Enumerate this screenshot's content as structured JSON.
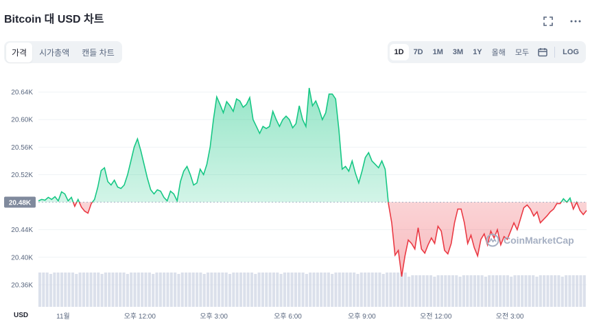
{
  "title": "Bitcoin 대 USD 차트",
  "top_icons": [
    "fullscreen-icon",
    "more-icon"
  ],
  "left_tabs": [
    {
      "label": "가격",
      "active": true
    },
    {
      "label": "시가총액",
      "active": false
    },
    {
      "label": "캔들 차트",
      "active": false
    }
  ],
  "range_tabs": [
    {
      "label": "1D",
      "active": true,
      "kr": false
    },
    {
      "label": "7D",
      "active": false,
      "kr": false
    },
    {
      "label": "1M",
      "active": false,
      "kr": false
    },
    {
      "label": "3M",
      "active": false,
      "kr": false
    },
    {
      "label": "1Y",
      "active": false,
      "kr": false
    },
    {
      "label": "올해",
      "active": false,
      "kr": true
    },
    {
      "label": "모두",
      "active": false,
      "kr": true
    }
  ],
  "log_label": "LOG",
  "currency_label": "USD",
  "watermark": "CoinMarketCap",
  "colors": {
    "up": "#16c784",
    "down": "#ea3943",
    "baseline_label_bg": "#808a9d",
    "volume": "#cfd6e4"
  },
  "chart_data": {
    "type": "line",
    "baseline": 20480,
    "baseline_label": "20.48K",
    "ylim": [
      20330,
      20670
    ],
    "yticks": [
      {
        "value": 20640,
        "label": "20.64K"
      },
      {
        "value": 20600,
        "label": "20.60K"
      },
      {
        "value": 20560,
        "label": "20.56K"
      },
      {
        "value": 20520,
        "label": "20.52K"
      },
      {
        "value": 20440,
        "label": "20.44K"
      },
      {
        "value": 20400,
        "label": "20.40K"
      },
      {
        "value": 20360,
        "label": "20.36K"
      }
    ],
    "xticks": [
      {
        "t": 0.045,
        "label": "11월"
      },
      {
        "t": 0.185,
        "label": "오후 12:00"
      },
      {
        "t": 0.32,
        "label": "오후 3:00"
      },
      {
        "t": 0.455,
        "label": "오후 6:00"
      },
      {
        "t": 0.59,
        "label": "오후 9:00"
      },
      {
        "t": 0.725,
        "label": "오전 12:00"
      },
      {
        "t": 0.86,
        "label": "오전 3:00"
      }
    ],
    "series": [
      {
        "values": [
          20482,
          20484,
          20483,
          20487,
          20484,
          20488,
          20482,
          20495,
          20492,
          20482,
          20487,
          20474,
          20484,
          20473,
          20467,
          20464,
          20478,
          20484,
          20502,
          20526,
          20530,
          20510,
          20505,
          20512,
          20502,
          20500,
          20505,
          20520,
          20540,
          20560,
          20572,
          20555,
          20535,
          20515,
          20498,
          20492,
          20498,
          20496,
          20487,
          20482,
          20496,
          20492,
          20482,
          20510,
          20525,
          20532,
          20520,
          20505,
          20508,
          20528,
          20520,
          20535,
          20560,
          20600,
          20633,
          20622,
          20610,
          20626,
          20620,
          20612,
          20630,
          20627,
          20618,
          20622,
          20632,
          20600,
          20590,
          20580,
          20590,
          20587,
          20590,
          20612,
          20600,
          20590,
          20600,
          20605,
          20600,
          20588,
          20594,
          20620,
          20600,
          20590,
          20646,
          20620,
          20627,
          20615,
          20600,
          20610,
          20637,
          20637,
          20630,
          20585,
          20528,
          20532,
          20525,
          20540,
          20522,
          20508,
          20525,
          20545,
          20552,
          20540,
          20535,
          20530,
          20540,
          20528,
          20478,
          20450,
          20403,
          20410,
          20372,
          20402,
          20425,
          20420,
          20412,
          20443,
          20412,
          20406,
          20418,
          20428,
          20420,
          20445,
          20438,
          20410,
          20405,
          20420,
          20450,
          20470,
          20470,
          20450,
          20420,
          20432,
          20414,
          20402,
          20426,
          20434,
          20418,
          20438,
          20428,
          20440,
          20418,
          20430,
          20426,
          20438,
          20450,
          20440,
          20456,
          20472,
          20476,
          20470,
          20460,
          20466,
          20450,
          20455,
          20460,
          20466,
          20470,
          20478,
          20478,
          20485,
          20480,
          20486,
          20470,
          20480,
          20468,
          20462,
          20468
        ]
      }
    ],
    "volume_bars": 150
  }
}
